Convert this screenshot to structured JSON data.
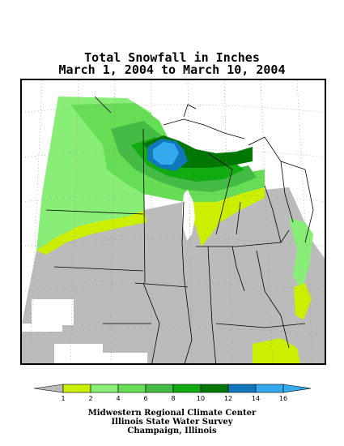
{
  "title": {
    "line1": "Total Snowfall in Inches",
    "line2": "March 1, 2004 to March 10, 2004"
  },
  "legend": {
    "ticks": [
      "1",
      "2",
      "4",
      "6",
      "8",
      "10",
      "12",
      "14",
      "16"
    ],
    "bins": [
      {
        "min": 1,
        "max": 2,
        "color": "#ccee00"
      },
      {
        "min": 2,
        "max": 4,
        "color": "#88ee77"
      },
      {
        "min": 4,
        "max": 6,
        "color": "#66dd55"
      },
      {
        "min": 6,
        "max": 8,
        "color": "#44bb44"
      },
      {
        "min": 8,
        "max": 10,
        "color": "#11aa11"
      },
      {
        "min": 10,
        "max": 12,
        "color": "#007700"
      },
      {
        "min": 12,
        "max": 14,
        "color": "#1177bb"
      },
      {
        "min": 14,
        "max": 16,
        "color": "#33aaee"
      }
    ],
    "below_color": "#bbbbbb",
    "above_color": "#33aaee"
  },
  "map": {
    "colors": {
      "none": "#bbbbbb",
      "missing": "#ffffff",
      "water": "#ffffff",
      "border": "#000000",
      "grid": "#888888"
    }
  },
  "credits": {
    "line1": "Midwestern Regional Climate Center",
    "line2": "Illinois State Water Survey",
    "line3": "Champaign, Illinois"
  }
}
